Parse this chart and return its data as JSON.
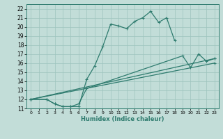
{
  "xlabel": "Humidex (Indice chaleur)",
  "bg_color": "#c2ddd8",
  "grid_color": "#9dc4be",
  "line_color": "#2e7b6e",
  "xlim": [
    -0.5,
    23.5
  ],
  "ylim": [
    11,
    22.5
  ],
  "xticks": [
    0,
    1,
    2,
    3,
    4,
    5,
    6,
    7,
    8,
    9,
    10,
    11,
    12,
    13,
    14,
    15,
    16,
    17,
    18,
    19,
    20,
    21,
    22,
    23
  ],
  "yticks": [
    11,
    12,
    13,
    14,
    15,
    16,
    17,
    18,
    19,
    20,
    21,
    22
  ],
  "series": [
    {
      "x": [
        0,
        2,
        3,
        4,
        5,
        6,
        7,
        8,
        9,
        10,
        11,
        12,
        13,
        14,
        15,
        16,
        17,
        18
      ],
      "y": [
        12,
        12,
        11.5,
        11.2,
        11.2,
        11.2,
        14.2,
        15.7,
        17.8,
        20.3,
        20.1,
        19.8,
        20.6,
        21.0,
        21.7,
        20.5,
        21.0,
        18.5
      ]
    },
    {
      "x": [
        0,
        2,
        3,
        4,
        5,
        6,
        7,
        19,
        20,
        21,
        22,
        23
      ],
      "y": [
        12,
        12,
        11.5,
        11.2,
        11.2,
        11.5,
        13.2,
        16.8,
        15.5,
        17.0,
        16.2,
        16.5
      ]
    },
    {
      "x": [
        0,
        23
      ],
      "y": [
        12,
        16.5
      ]
    },
    {
      "x": [
        0,
        23
      ],
      "y": [
        12,
        16.0
      ]
    }
  ]
}
